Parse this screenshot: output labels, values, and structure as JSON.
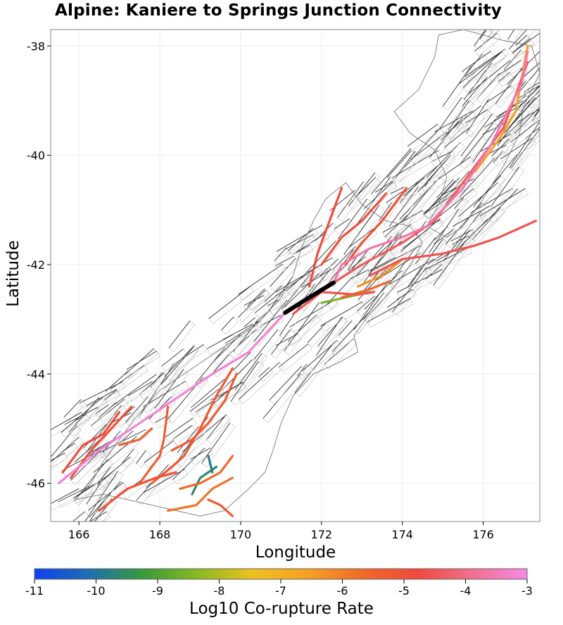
{
  "title": "Alpine: Kaniere to Springs Junction Connectivity",
  "xlabel": "Longitude",
  "ylabel": "Latitude",
  "colorbar": {
    "label": "Log10 Co-rupture Rate",
    "ticks": [
      "-11",
      "-10",
      "-9",
      "-8",
      "-7",
      "-6",
      "-5",
      "-4",
      "-3"
    ],
    "range": [
      -11,
      -3
    ],
    "colors": [
      "#1040f0",
      "#1e6fb0",
      "#3a9a3a",
      "#8aba20",
      "#f0c020",
      "#f5a024",
      "#f06a28",
      "#f04a3c",
      "#f07090",
      "#f48ae6"
    ]
  },
  "chart_data": {
    "type": "map",
    "title": "Alpine: Kaniere to Springs Junction Connectivity",
    "xlabel": "Longitude",
    "ylabel": "Latitude",
    "xlim": [
      165.3,
      177.4
    ],
    "ylim": [
      -46.7,
      -37.7
    ],
    "xticks": [
      "166",
      "168",
      "170",
      "172",
      "174",
      "176"
    ],
    "yticks": [
      "-38",
      "-40",
      "-42",
      "-44",
      "-46"
    ],
    "grid": true,
    "source_section": {
      "name": "Alpine: Kaniere to Springs Junction",
      "color": "#000000",
      "points": [
        [
          171.1,
          -42.88
        ],
        [
          171.7,
          -42.6
        ],
        [
          172.3,
          -42.33
        ]
      ]
    },
    "ruptures": [
      {
        "value": -3.2,
        "points": [
          [
            165.5,
            -46.0
          ],
          [
            166.5,
            -45.4
          ],
          [
            167.5,
            -44.9
          ],
          [
            168.3,
            -44.5
          ],
          [
            169.3,
            -44.0
          ],
          [
            170.2,
            -43.6
          ],
          [
            171.1,
            -42.88
          ]
        ]
      },
      {
        "value": -3.6,
        "points": [
          [
            172.3,
            -42.33
          ],
          [
            172.5,
            -42.0
          ],
          [
            173.2,
            -41.7
          ],
          [
            174.0,
            -41.5
          ],
          [
            174.6,
            -41.3
          ],
          [
            175.5,
            -40.6
          ],
          [
            176.2,
            -39.8
          ],
          [
            176.6,
            -39.2
          ],
          [
            176.95,
            -38.7
          ],
          [
            177.1,
            -38.1
          ]
        ]
      },
      {
        "value": -4.4,
        "points": [
          [
            172.3,
            -42.33
          ],
          [
            173.0,
            -42.0
          ],
          [
            174.0,
            -41.6
          ],
          [
            174.8,
            -41.2
          ],
          [
            175.5,
            -40.5
          ],
          [
            176.5,
            -39.5
          ],
          [
            177.1,
            -38.3
          ]
        ]
      },
      {
        "value": -4.6,
        "points": [
          [
            171.3,
            -42.9
          ],
          [
            172.0,
            -42.5
          ],
          [
            172.9,
            -42.55
          ],
          [
            173.3,
            -42.5
          ]
        ]
      },
      {
        "value": -4.6,
        "points": [
          [
            173.2,
            -42.2
          ],
          [
            174.0,
            -41.9
          ],
          [
            175.0,
            -41.8
          ],
          [
            175.8,
            -41.65
          ],
          [
            176.4,
            -41.5
          ],
          [
            177.3,
            -41.2
          ]
        ]
      },
      {
        "value": -4.8,
        "points": [
          [
            171.7,
            -42.4
          ],
          [
            171.9,
            -41.8
          ],
          [
            172.2,
            -41.2
          ],
          [
            172.5,
            -40.6
          ]
        ]
      },
      {
        "value": -4.9,
        "points": [
          [
            172.0,
            -42.0
          ],
          [
            172.5,
            -41.5
          ],
          [
            173.0,
            -41.2
          ],
          [
            173.6,
            -40.7
          ]
        ]
      },
      {
        "value": -5.0,
        "points": [
          [
            172.6,
            -42.0
          ],
          [
            173.0,
            -41.6
          ],
          [
            173.5,
            -41.2
          ],
          [
            174.1,
            -40.6
          ]
        ]
      },
      {
        "value": -5.2,
        "points": [
          [
            168.3,
            -45.4
          ],
          [
            168.8,
            -45.2
          ],
          [
            169.2,
            -44.9
          ],
          [
            169.6,
            -44.5
          ],
          [
            169.9,
            -44.0
          ]
        ]
      },
      {
        "value": -5.2,
        "points": [
          [
            167.8,
            -46.0
          ],
          [
            168.3,
            -45.7
          ],
          [
            168.6,
            -45.5
          ],
          [
            169.0,
            -45.0
          ],
          [
            169.4,
            -44.4
          ],
          [
            169.8,
            -43.9
          ]
        ]
      },
      {
        "value": -5.0,
        "points": [
          [
            166.5,
            -46.5
          ],
          [
            167.2,
            -46.1
          ],
          [
            167.9,
            -45.9
          ],
          [
            168.4,
            -45.8
          ]
        ]
      },
      {
        "value": -5.6,
        "points": [
          [
            168.5,
            -46.1
          ],
          [
            169.0,
            -46.0
          ],
          [
            169.5,
            -45.8
          ],
          [
            169.8,
            -45.5
          ]
        ]
      },
      {
        "value": -5.8,
        "points": [
          [
            168.2,
            -46.5
          ],
          [
            168.9,
            -46.4
          ],
          [
            169.3,
            -46.1
          ],
          [
            169.8,
            -45.9
          ]
        ]
      },
      {
        "value": -5.2,
        "points": [
          [
            169.2,
            -46.3
          ],
          [
            169.5,
            -46.4
          ],
          [
            169.8,
            -46.6
          ]
        ]
      },
      {
        "value": -5.0,
        "points": [
          [
            165.8,
            -45.9
          ],
          [
            166.3,
            -45.4
          ],
          [
            166.8,
            -45.0
          ],
          [
            167.3,
            -44.6
          ]
        ]
      },
      {
        "value": -4.8,
        "points": [
          [
            165.6,
            -45.8
          ],
          [
            166.1,
            -45.3
          ],
          [
            166.6,
            -45.1
          ],
          [
            167.0,
            -44.7
          ]
        ]
      },
      {
        "value": -5.4,
        "points": [
          [
            167.0,
            -45.3
          ],
          [
            167.5,
            -45.2
          ],
          [
            167.8,
            -45.0
          ]
        ]
      },
      {
        "value": -5.3,
        "points": [
          [
            167.5,
            -46.0
          ],
          [
            168.0,
            -45.5
          ],
          [
            168.1,
            -45.2
          ],
          [
            168.2,
            -44.6
          ]
        ]
      },
      {
        "value": -9.6,
        "points": [
          [
            168.8,
            -46.2
          ],
          [
            169.0,
            -45.9
          ],
          [
            169.4,
            -45.7
          ]
        ]
      },
      {
        "value": -9.9,
        "points": [
          [
            169.2,
            -45.5
          ],
          [
            169.3,
            -45.8
          ]
        ]
      },
      {
        "value": -8.5,
        "points": [
          [
            172.0,
            -42.7
          ],
          [
            172.6,
            -42.6
          ],
          [
            173.2,
            -42.5
          ]
        ]
      },
      {
        "value": -5.5,
        "points": [
          [
            172.5,
            -42.6
          ],
          [
            173.2,
            -42.45
          ],
          [
            173.7,
            -42.3
          ]
        ]
      },
      {
        "value": -6.3,
        "points": [
          [
            172.9,
            -42.4
          ],
          [
            173.5,
            -42.2
          ],
          [
            174.0,
            -41.9
          ]
        ]
      },
      {
        "value": -6.6,
        "points": [
          [
            175.8,
            -40.3
          ],
          [
            176.4,
            -39.7
          ],
          [
            176.8,
            -39.2
          ],
          [
            177.1,
            -38.0
          ]
        ]
      }
    ]
  }
}
